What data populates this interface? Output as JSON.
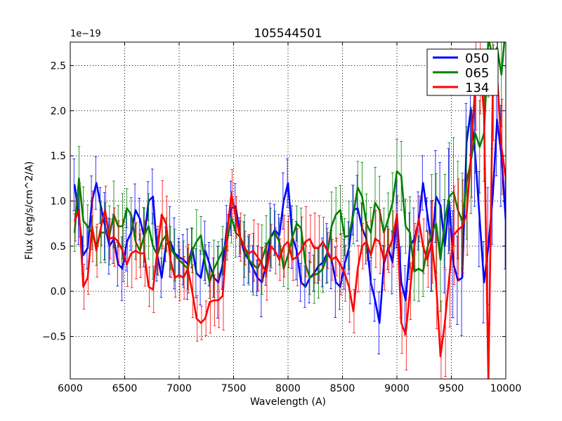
{
  "chart_data": {
    "type": "line",
    "title": "105544501",
    "xlabel": "Wavelength (A)",
    "ylabel": "Flux (erg/s/cm^2/A)",
    "offset_label": "1e−19",
    "xlim": [
      6000,
      10000
    ],
    "ylim": [
      -0.97,
      2.76
    ],
    "xticks": [
      6000,
      6500,
      7000,
      7500,
      8000,
      8500,
      9000,
      9500,
      10000
    ],
    "xtick_labels": [
      "6000",
      "6500",
      "7000",
      "7500",
      "8000",
      "8500",
      "9000",
      "9500",
      "10000"
    ],
    "yticks": [
      -0.5,
      0.0,
      0.5,
      1.0,
      1.5,
      2.0,
      2.5
    ],
    "ytick_labels": [
      "−0.5",
      "0.0",
      "0.5",
      "1.0",
      "1.5",
      "2.0",
      "2.5"
    ],
    "grid": true,
    "legend_position": "top-right",
    "x": [
      6040,
      6080,
      6120,
      6160,
      6200,
      6240,
      6280,
      6320,
      6360,
      6400,
      6440,
      6480,
      6520,
      6560,
      6600,
      6640,
      6680,
      6720,
      6760,
      6800,
      6840,
      6880,
      6920,
      6960,
      7000,
      7040,
      7080,
      7120,
      7160,
      7200,
      7240,
      7280,
      7320,
      7360,
      7400,
      7440,
      7480,
      7520,
      7560,
      7600,
      7640,
      7680,
      7720,
      7760,
      7800,
      7840,
      7880,
      7920,
      7960,
      8000,
      8040,
      8080,
      8120,
      8160,
      8200,
      8240,
      8280,
      8320,
      8360,
      8400,
      8440,
      8480,
      8520,
      8560,
      8600,
      8640,
      8680,
      8720,
      8760,
      8800,
      8840,
      8880,
      8920,
      8960,
      9000,
      9040,
      9080,
      9120,
      9160,
      9200,
      9240,
      9280,
      9320,
      9360,
      9400,
      9440,
      9480,
      9520,
      9560,
      9600,
      9640,
      9680,
      9720,
      9760,
      9800,
      9840,
      9880,
      9920,
      9960,
      10000
    ],
    "series": [
      {
        "name": "050",
        "color": "#0000ff",
        "values": [
          1.18,
          0.82,
          0.4,
          0.48,
          1.0,
          1.2,
          0.95,
          0.72,
          0.5,
          0.58,
          0.3,
          0.25,
          0.55,
          0.65,
          0.9,
          0.8,
          0.6,
          1.0,
          1.05,
          0.4,
          0.15,
          0.52,
          0.55,
          0.42,
          0.38,
          0.35,
          0.3,
          0.48,
          0.2,
          0.15,
          0.45,
          0.3,
          0.15,
          0.1,
          0.3,
          0.72,
          0.92,
          0.94,
          0.6,
          0.42,
          0.35,
          0.25,
          0.15,
          0.1,
          0.3,
          0.6,
          0.68,
          0.62,
          1.0,
          1.2,
          0.6,
          0.45,
          0.1,
          0.05,
          0.15,
          0.2,
          0.28,
          0.32,
          0.42,
          0.35,
          0.1,
          0.05,
          0.3,
          0.48,
          0.9,
          0.92,
          0.7,
          0.58,
          0.1,
          -0.1,
          -0.35,
          0.3,
          0.48,
          0.32,
          0.85,
          0.1,
          -0.1,
          0.5,
          0.58,
          0.78,
          1.2,
          0.85,
          0.5,
          1.05,
          0.95,
          0.5,
          1.0,
          0.3,
          0.12,
          0.15,
          1.65,
          2.02,
          1.5,
          0.8,
          0.1,
          0.5,
          1.05,
          1.9,
          1.5,
          0.78
        ]
      },
      {
        "name": "065",
        "color": "#008000",
        "values": [
          0.65,
          1.25,
          0.78,
          0.72,
          0.65,
          0.5,
          0.65,
          0.65,
          0.62,
          0.85,
          0.72,
          0.72,
          0.92,
          0.85,
          0.55,
          0.45,
          0.62,
          0.72,
          0.5,
          0.4,
          0.55,
          0.62,
          0.48,
          0.4,
          0.35,
          0.3,
          0.25,
          0.45,
          0.55,
          0.62,
          0.3,
          0.1,
          0.25,
          0.35,
          0.45,
          0.55,
          0.82,
          0.65,
          0.6,
          0.5,
          0.35,
          0.3,
          0.25,
          0.35,
          0.5,
          0.6,
          0.65,
          0.55,
          0.25,
          0.4,
          0.6,
          0.75,
          0.7,
          0.3,
          0.15,
          0.18,
          0.2,
          0.25,
          0.4,
          0.72,
          0.85,
          0.9,
          0.6,
          0.62,
          0.85,
          1.15,
          1.05,
          0.75,
          0.65,
          0.98,
          0.9,
          0.65,
          0.8,
          0.98,
          1.33,
          1.28,
          0.72,
          0.65,
          0.22,
          0.25,
          0.22,
          0.48,
          0.65,
          0.75,
          0.35,
          0.78,
          1.05,
          1.1,
          0.9,
          0.78,
          1.2,
          1.45,
          1.75,
          1.6,
          1.75,
          2.8,
          2.6,
          2.7,
          2.4,
          2.95
        ]
      },
      {
        "name": "134",
        "color": "#ff0000",
        "values": [
          0.78,
          0.9,
          0.05,
          0.15,
          0.72,
          0.45,
          0.7,
          0.9,
          0.58,
          0.6,
          0.55,
          0.45,
          0.3,
          0.42,
          0.45,
          0.42,
          0.42,
          0.05,
          0.02,
          0.45,
          0.85,
          0.75,
          0.35,
          0.15,
          0.18,
          0.15,
          0.25,
          0.0,
          -0.3,
          -0.35,
          -0.3,
          -0.12,
          -0.1,
          -0.1,
          -0.05,
          0.65,
          1.08,
          0.82,
          0.6,
          0.48,
          0.42,
          0.45,
          0.38,
          0.3,
          0.2,
          0.5,
          0.45,
          0.35,
          0.5,
          0.55,
          0.35,
          0.38,
          0.45,
          0.55,
          0.58,
          0.48,
          0.48,
          0.55,
          0.45,
          0.35,
          0.38,
          0.3,
          0.2,
          0.05,
          -0.22,
          0.25,
          0.5,
          0.55,
          0.4,
          0.58,
          0.55,
          0.35,
          0.45,
          0.58,
          0.85,
          -0.35,
          -0.48,
          0.0,
          0.5,
          0.8,
          0.5,
          0.35,
          0.55,
          0.1,
          -0.72,
          -0.35,
          0.15,
          0.62,
          0.68,
          0.72,
          0.85,
          1.5,
          2.3,
          2.6,
          1.95,
          -1.0,
          2.2,
          2.4,
          1.6,
          1.25
        ]
      }
    ]
  }
}
